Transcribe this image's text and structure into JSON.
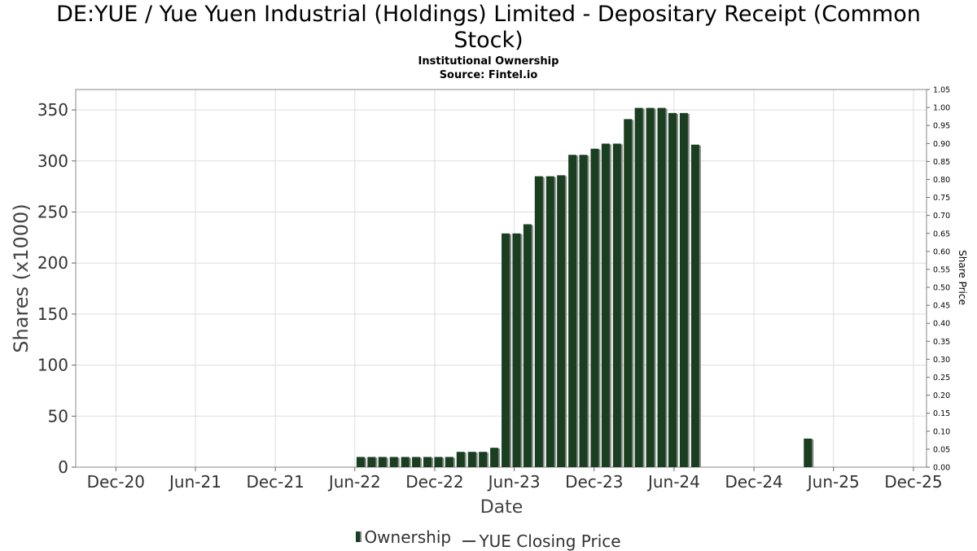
{
  "header": {
    "title_line1": "DE:YUE / Yue Yuen Industrial (Holdings) Limited - Depositary Receipt (Common",
    "title_line2": "Stock)",
    "subtitle": "Institutional Ownership",
    "source": "Source: Fintel.io"
  },
  "legend": {
    "ownership_label": "Ownership",
    "price_label": "YUE Closing Price"
  },
  "colors": {
    "bar": "#1a3f20",
    "bar_shadow": "#8a8a8a",
    "grid": "#dddddd",
    "axis": "#666666"
  },
  "chart_data": {
    "type": "bar",
    "xlabel": "Date",
    "ylabel": "Shares (x1000)",
    "y2label": "Share Price",
    "ylim": [
      0,
      370
    ],
    "y2lim": [
      0,
      1.05
    ],
    "grid": true,
    "legend_position": "bottom",
    "x_range": [
      "2020-08-31",
      "2025-12-31"
    ],
    "y_ticks": [
      0,
      50,
      100,
      150,
      200,
      250,
      300,
      350
    ],
    "y2_ticks": [
      "0.00",
      "0.05",
      "0.10",
      "0.15",
      "0.20",
      "0.25",
      "0.30",
      "0.35",
      "0.40",
      "0.45",
      "0.50",
      "0.55",
      "0.60",
      "0.65",
      "0.70",
      "0.75",
      "0.80",
      "0.85",
      "0.90",
      "0.95",
      "1.00",
      "1.05"
    ],
    "x_ticks": [
      {
        "label": "Dec-20",
        "date": "2020-12-01"
      },
      {
        "label": "Jun-21",
        "date": "2021-06-01"
      },
      {
        "label": "Dec-21",
        "date": "2021-12-01"
      },
      {
        "label": "Jun-22",
        "date": "2022-06-01"
      },
      {
        "label": "Dec-22",
        "date": "2022-12-01"
      },
      {
        "label": "Jun-23",
        "date": "2023-06-01"
      },
      {
        "label": "Dec-23",
        "date": "2023-12-01"
      },
      {
        "label": "Jun-24",
        "date": "2024-06-01"
      },
      {
        "label": "Dec-24",
        "date": "2024-12-01"
      },
      {
        "label": "Jun-25",
        "date": "2025-06-01"
      },
      {
        "label": "Dec-25",
        "date": "2025-12-01"
      }
    ],
    "series": [
      {
        "name": "Ownership",
        "points": [
          {
            "date": "2022-06-05",
            "value": 10
          },
          {
            "date": "2022-06-30",
            "value": 10
          },
          {
            "date": "2022-07-25",
            "value": 10
          },
          {
            "date": "2022-08-20",
            "value": 10
          },
          {
            "date": "2022-09-15",
            "value": 10
          },
          {
            "date": "2022-10-10",
            "value": 10
          },
          {
            "date": "2022-11-05",
            "value": 10
          },
          {
            "date": "2022-11-30",
            "value": 10
          },
          {
            "date": "2022-12-25",
            "value": 10
          },
          {
            "date": "2023-01-20",
            "value": 15
          },
          {
            "date": "2023-02-15",
            "value": 15
          },
          {
            "date": "2023-03-12",
            "value": 15
          },
          {
            "date": "2023-04-07",
            "value": 19
          },
          {
            "date": "2023-05-03",
            "value": 229
          },
          {
            "date": "2023-05-28",
            "value": 229
          },
          {
            "date": "2023-06-22",
            "value": 238
          },
          {
            "date": "2023-07-18",
            "value": 285
          },
          {
            "date": "2023-08-13",
            "value": 285
          },
          {
            "date": "2023-09-07",
            "value": 286
          },
          {
            "date": "2023-10-03",
            "value": 306
          },
          {
            "date": "2023-10-28",
            "value": 306
          },
          {
            "date": "2023-11-23",
            "value": 312
          },
          {
            "date": "2023-12-18",
            "value": 317
          },
          {
            "date": "2024-01-13",
            "value": 317
          },
          {
            "date": "2024-02-07",
            "value": 341
          },
          {
            "date": "2024-03-03",
            "value": 352
          },
          {
            "date": "2024-03-29",
            "value": 352
          },
          {
            "date": "2024-04-24",
            "value": 352
          },
          {
            "date": "2024-05-19",
            "value": 347
          },
          {
            "date": "2024-06-14",
            "value": 347
          },
          {
            "date": "2024-07-10",
            "value": 316
          },
          {
            "date": "2025-03-25",
            "value": 28
          }
        ]
      }
    ]
  }
}
